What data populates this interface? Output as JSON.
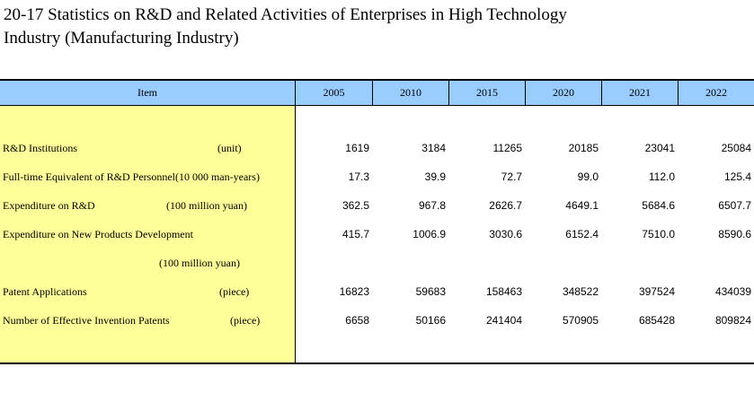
{
  "title": {
    "line1": "20-17 Statistics on R&D and Related Activities of Enterprises in High Technology",
    "line2": "Industry (Manufacturing Industry)"
  },
  "table": {
    "stub_header": "Item",
    "columns": [
      "2005",
      "2010",
      "2015",
      "2020",
      "2021",
      "2022"
    ],
    "rows": [
      {
        "label": "R&D Institutions",
        "unit": "(unit)",
        "values": [
          "1619",
          "3184",
          "11265",
          "20185",
          "23041",
          "25084"
        ]
      },
      {
        "label": "Full-time Equivalent of R&D Personnel(10 000 man-years)",
        "unit": "",
        "values": [
          "17.3",
          "39.9",
          "72.7",
          "99.0",
          "112.0",
          "125.4"
        ]
      },
      {
        "label": "Expenditure on R&D",
        "unit": "(100 million yuan)",
        "values": [
          "362.5",
          "967.8",
          "2626.7",
          "4649.1",
          "5684.6",
          "6507.7"
        ]
      },
      {
        "label": "Expenditure on New Products Development",
        "unit": "(100 million yuan)",
        "values": [
          "415.7",
          "1006.9",
          "3030.6",
          "6152.4",
          "7510.0",
          "8590.6"
        ]
      },
      {
        "label": "Patent Applications",
        "unit": "(piece)",
        "values": [
          "16823",
          "59683",
          "158463",
          "348522",
          "397524",
          "434039"
        ]
      },
      {
        "label": "Number of Effective Invention Patents",
        "unit": "(piece)",
        "values": [
          "6658",
          "50166",
          "241404",
          "570905",
          "685428",
          "809824"
        ]
      }
    ]
  },
  "colors": {
    "header_bg": "#99ccff",
    "stub_bg": "#ffff99"
  }
}
